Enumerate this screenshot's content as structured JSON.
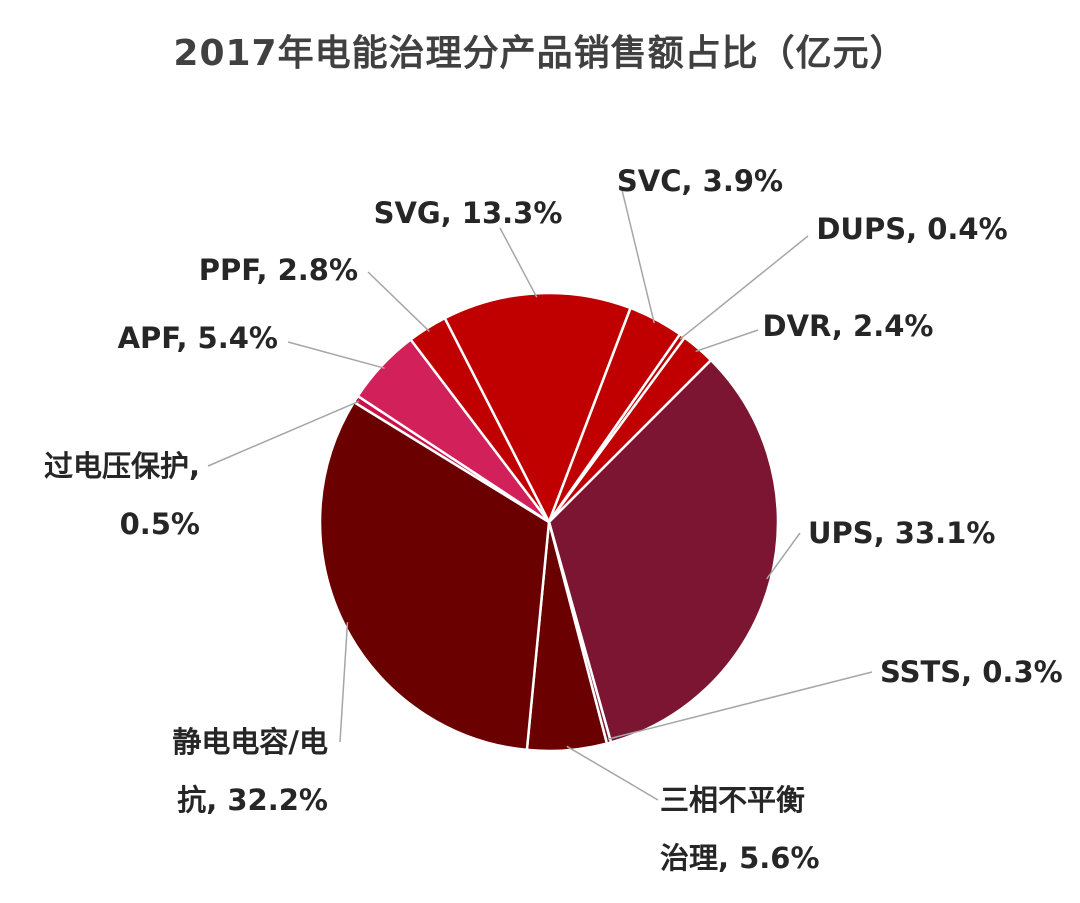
{
  "chart_data": {
    "type": "pie",
    "title": "2017年电能治理分产品销售额占比（亿元）",
    "unit": "%",
    "slices": [
      {
        "name": "UPS",
        "value": 33.1,
        "color": "#7B1532",
        "label_lines": [
          "UPS, 33.1%"
        ]
      },
      {
        "name": "SSTS",
        "value": 0.3,
        "color": "#7B1532",
        "label_lines": [
          "SSTS, 0.3%"
        ]
      },
      {
        "name": "三相不平衡治理",
        "value": 5.6,
        "color": "#6B0000",
        "label_lines": [
          "三相不平衡",
          "治理, 5.6%"
        ]
      },
      {
        "name": "静电电容/电抗",
        "value": 32.2,
        "color": "#6B0000",
        "label_lines": [
          "静电电容/电",
          "抗, 32.2%"
        ]
      },
      {
        "name": "过电压保护",
        "value": 0.5,
        "color": "#C8104A",
        "label_lines": [
          "过电压保护,",
          "0.5%"
        ]
      },
      {
        "name": "APF",
        "value": 5.4,
        "color": "#D2215A",
        "label_lines": [
          "APF, 5.4%"
        ]
      },
      {
        "name": "PPF",
        "value": 2.8,
        "color": "#C00000",
        "label_lines": [
          "PPF, 2.8%"
        ]
      },
      {
        "name": "SVG",
        "value": 13.3,
        "color": "#C00000",
        "label_lines": [
          "SVG, 13.3%"
        ]
      },
      {
        "name": "SVC",
        "value": 3.9,
        "color": "#C00000",
        "label_lines": [
          "SVC, 3.9%"
        ]
      },
      {
        "name": "DUPS",
        "value": 0.4,
        "color": "#C00000",
        "label_lines": [
          "DUPS, 0.4%"
        ]
      },
      {
        "name": "DVR",
        "value": 2.4,
        "color": "#C00000",
        "label_lines": [
          "DVR, 2.4%"
        ]
      }
    ]
  }
}
